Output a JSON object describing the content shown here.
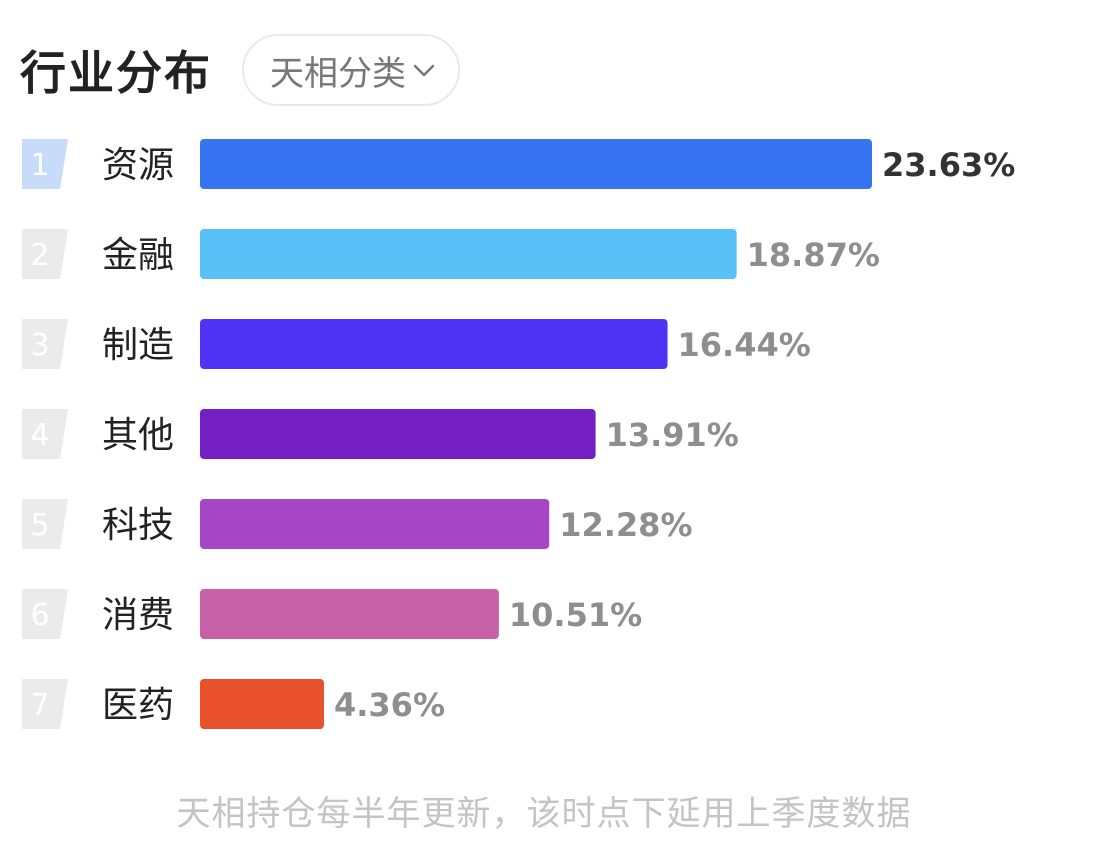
{
  "header": {
    "title": "行业分布",
    "category_select": {
      "selected": "天相分类",
      "icon": "chevron-down-icon"
    }
  },
  "chart_data": {
    "type": "bar",
    "orientation": "horizontal",
    "categories": [
      "资源",
      "金融",
      "制造",
      "其他",
      "科技",
      "消费",
      "医药"
    ],
    "ranks": [
      "1",
      "2",
      "3",
      "4",
      "5",
      "6",
      "7"
    ],
    "values": [
      23.63,
      18.87,
      16.44,
      13.91,
      12.28,
      10.51,
      4.36
    ],
    "value_labels": [
      "23.63%",
      "18.87%",
      "16.44%",
      "13.91%",
      "12.28%",
      "10.51%",
      "4.36%"
    ],
    "unit": "%",
    "colors": [
      "#3674f1",
      "#5ac1f8",
      "#4f33f4",
      "#731fc3",
      "#a646c7",
      "#c761a7",
      "#e9512d"
    ],
    "rank_badge_colors": {
      "top": "#c7dcfb",
      "default": "#ebebeb"
    },
    "title": "",
    "xlabel": "",
    "ylabel": "",
    "grid": false,
    "legend": "none"
  },
  "footnote": "天相持仓每半年更新，该时点下延用上季度数据"
}
